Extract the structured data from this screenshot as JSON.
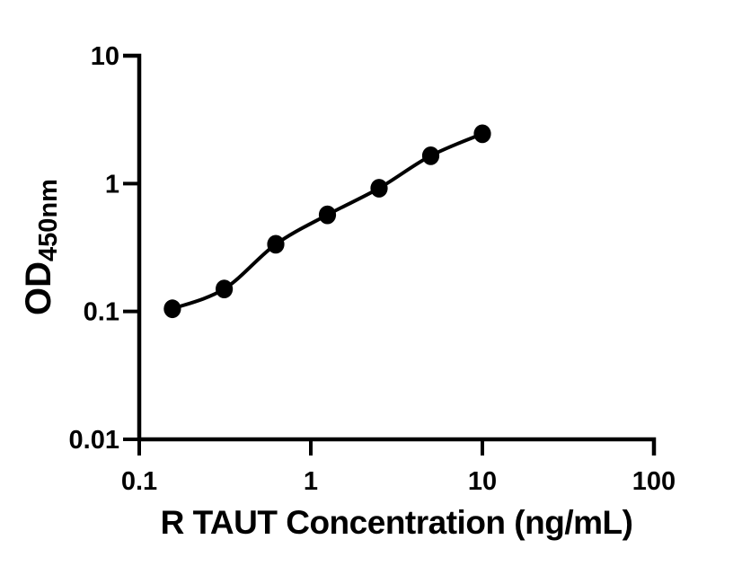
{
  "figure": {
    "background_color": "#ffffff",
    "ink_color": "#000000"
  },
  "chart_data": {
    "type": "scatter",
    "subtype": "ELISA standard curve, smooth fitted line through filled circle markers",
    "title": "",
    "xlabel": "R TAUT Concentration (ng/mL)",
    "ylabel": "OD450nm",
    "ylabel_main": "OD",
    "ylabel_subscript": "450nm",
    "x_scale": "log10",
    "y_scale": "log10",
    "xlim": [
      0.1,
      100
    ],
    "ylim": [
      0.01,
      10
    ],
    "x_tick_values": [
      0.1,
      1,
      10,
      100
    ],
    "x_tick_labels": [
      "0.1",
      "1",
      "10",
      "100"
    ],
    "y_tick_values": [
      10,
      1,
      0.1,
      0.01
    ],
    "y_tick_labels": [
      "10",
      "1",
      "0.1",
      "0.01"
    ],
    "grid": false,
    "legend": "none",
    "marker_color": "#000000",
    "line_color": "#000000",
    "series": [
      {
        "name": "standard-curve",
        "marker": "filled-circle",
        "line": "smooth",
        "x": [
          0.156,
          0.313,
          0.625,
          1.25,
          2.5,
          5,
          10
        ],
        "y": [
          0.105,
          0.15,
          0.335,
          0.57,
          0.92,
          1.65,
          2.45
        ]
      }
    ]
  }
}
